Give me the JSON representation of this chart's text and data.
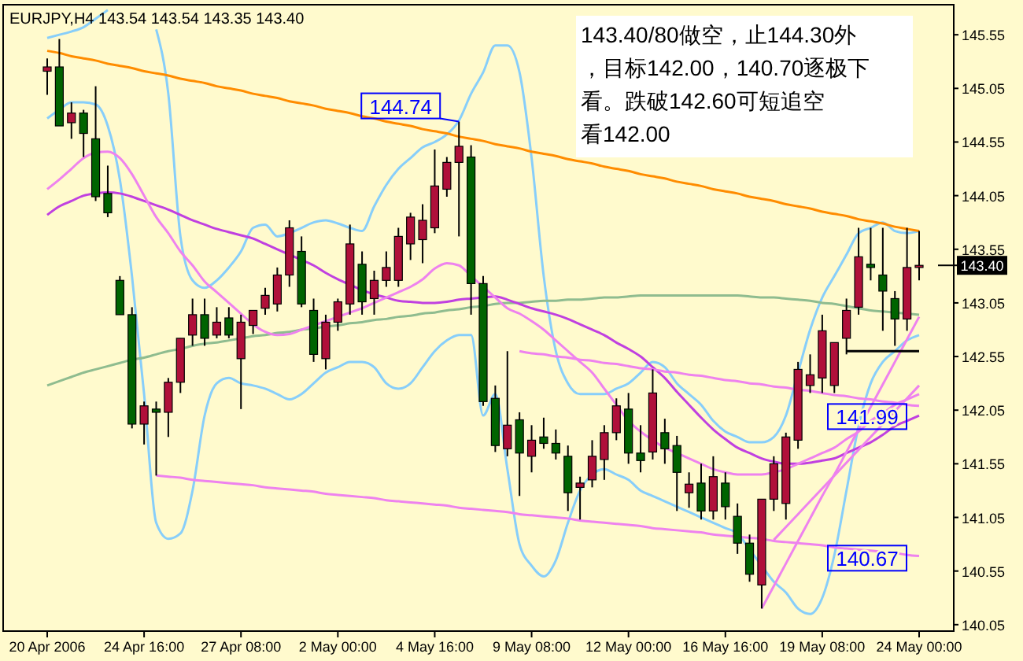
{
  "chart_data": {
    "type": "candlestick",
    "title": "EURJPY,H4  143.54 143.54 143.35 143.40",
    "categories": [
      "20 Apr 2006",
      null,
      null,
      null,
      null,
      null,
      null,
      null,
      "24 Apr 16:00",
      null,
      null,
      null,
      null,
      null,
      null,
      null,
      "27 Apr 08:00",
      null,
      null,
      null,
      null,
      null,
      null,
      null,
      "2 May 00:00",
      null,
      null,
      null,
      null,
      null,
      null,
      null,
      "4 May 16:00",
      null,
      null,
      null,
      null,
      null,
      null,
      null,
      "9 May 08:00",
      null,
      null,
      null,
      null,
      null,
      null,
      null,
      "12 May 00:00",
      null,
      null,
      null,
      null,
      null,
      null,
      null,
      "16 May 16:00",
      null,
      null,
      null,
      null,
      null,
      null,
      null,
      "19 May 08:00",
      null,
      null,
      null,
      null,
      null,
      null,
      null,
      "24 May 00:00"
    ],
    "ohlc": [
      [
        145.21,
        145.33,
        144.99,
        145.25
      ],
      [
        145.25,
        145.51,
        144.7,
        144.7
      ],
      [
        144.73,
        144.92,
        144.58,
        144.82
      ],
      [
        144.82,
        144.85,
        144.41,
        144.63
      ],
      [
        144.58,
        145.07,
        144.0,
        144.04
      ],
      [
        144.07,
        144.33,
        143.85,
        143.89
      ],
      [
        143.26,
        143.3,
        142.94,
        142.94
      ],
      [
        142.94,
        143.01,
        141.88,
        141.92
      ],
      [
        141.92,
        142.13,
        141.73,
        142.09
      ],
      [
        142.06,
        142.13,
        141.44,
        142.03
      ],
      [
        142.03,
        142.35,
        141.8,
        142.31
      ],
      [
        142.31,
        142.72,
        142.21,
        142.72
      ],
      [
        142.75,
        143.09,
        142.65,
        142.94
      ],
      [
        142.94,
        143.09,
        142.65,
        142.72
      ],
      [
        142.75,
        143.01,
        142.72,
        142.87
      ],
      [
        142.91,
        143.01,
        142.72,
        142.75
      ],
      [
        142.53,
        142.94,
        142.06,
        142.87
      ],
      [
        142.84,
        142.98,
        142.76,
        142.98
      ],
      [
        143.0,
        143.19,
        142.94,
        143.12
      ],
      [
        143.04,
        143.38,
        142.97,
        143.31
      ],
      [
        143.31,
        143.82,
        143.2,
        143.75
      ],
      [
        143.53,
        143.67,
        143.01,
        143.04
      ],
      [
        142.98,
        143.09,
        142.5,
        142.57
      ],
      [
        142.53,
        142.94,
        142.43,
        142.87
      ],
      [
        142.87,
        143.09,
        142.79,
        143.06
      ],
      [
        143.04,
        143.78,
        142.94,
        143.6
      ],
      [
        143.41,
        143.53,
        142.94,
        143.06
      ],
      [
        143.09,
        143.35,
        142.94,
        143.26
      ],
      [
        143.26,
        143.53,
        143.2,
        143.38
      ],
      [
        143.26,
        143.75,
        143.2,
        143.67
      ],
      [
        143.6,
        143.89,
        143.45,
        143.85
      ],
      [
        143.64,
        143.97,
        143.42,
        143.82
      ],
      [
        143.75,
        144.48,
        143.7,
        144.14
      ],
      [
        144.11,
        144.41,
        144.04,
        144.36
      ],
      [
        144.36,
        144.74,
        143.67,
        144.51
      ],
      [
        144.41,
        144.52,
        142.94,
        143.23
      ],
      [
        143.23,
        143.3,
        142.09,
        142.13
      ],
      [
        142.16,
        142.28,
        141.66,
        141.72
      ],
      [
        141.69,
        142.6,
        141.62,
        141.91
      ],
      [
        141.96,
        142.03,
        141.25,
        141.65
      ],
      [
        141.62,
        141.91,
        141.47,
        141.77
      ],
      [
        141.8,
        141.98,
        141.69,
        141.74
      ],
      [
        141.74,
        141.87,
        141.59,
        141.65
      ],
      [
        141.62,
        141.72,
        141.11,
        141.28
      ],
      [
        141.33,
        141.43,
        141.03,
        141.37
      ],
      [
        141.4,
        141.77,
        141.33,
        141.62
      ],
      [
        141.59,
        141.91,
        141.4,
        141.84
      ],
      [
        141.84,
        142.16,
        141.77,
        142.09
      ],
      [
        142.06,
        142.21,
        141.55,
        141.65
      ],
      [
        141.65,
        141.91,
        141.47,
        141.58
      ],
      [
        141.66,
        142.43,
        141.59,
        142.21
      ],
      [
        141.84,
        141.97,
        141.55,
        141.69
      ],
      [
        141.72,
        141.81,
        141.11,
        141.47
      ],
      [
        141.28,
        141.47,
        141.14,
        141.36
      ],
      [
        141.37,
        141.55,
        141.03,
        141.11
      ],
      [
        141.11,
        141.62,
        141.03,
        141.43
      ],
      [
        141.37,
        141.47,
        141.03,
        141.15
      ],
      [
        141.06,
        141.18,
        140.71,
        140.81
      ],
      [
        140.81,
        140.89,
        140.45,
        140.52
      ],
      [
        140.42,
        141.22,
        140.2,
        141.22
      ],
      [
        141.22,
        141.62,
        141.11,
        141.55
      ],
      [
        141.18,
        141.84,
        141.03,
        141.8
      ],
      [
        141.77,
        142.5,
        141.69,
        142.43
      ],
      [
        142.28,
        142.57,
        142.21,
        142.38
      ],
      [
        142.35,
        142.94,
        142.21,
        142.79
      ],
      [
        142.28,
        142.68,
        142.21,
        142.68
      ],
      [
        142.72,
        143.09,
        142.57,
        142.98
      ],
      [
        143.01,
        143.75,
        142.94,
        143.48
      ],
      [
        143.41,
        143.75,
        143.26,
        143.38
      ],
      [
        143.31,
        143.75,
        142.79,
        143.16
      ],
      [
        143.09,
        143.16,
        142.65,
        142.9
      ],
      [
        142.9,
        143.75,
        142.79,
        143.38
      ],
      [
        143.38,
        143.72,
        143.26,
        143.4
      ]
    ],
    "colors": [
      "#b0103a",
      "#006400",
      "#b0103a",
      "#006400",
      "#006400",
      "#006400",
      "#006400",
      "#006400",
      "#b0103a",
      "#006400",
      "#b0103a",
      "#b0103a",
      "#b0103a",
      "#006400",
      "#b0103a",
      "#006400",
      "#b0103a",
      "#b0103a",
      "#b0103a",
      "#b0103a",
      "#b0103a",
      "#006400",
      "#006400",
      "#b0103a",
      "#b0103a",
      "#b0103a",
      "#006400",
      "#b0103a",
      "#b0103a",
      "#b0103a",
      "#b0103a",
      "#b0103a",
      "#b0103a",
      "#b0103a",
      "#b0103a",
      "#006400",
      "#006400",
      "#006400",
      "#b0103a",
      "#006400",
      "#b0103a",
      "#006400",
      "#006400",
      "#006400",
      "#b0103a",
      "#b0103a",
      "#b0103a",
      "#b0103a",
      "#006400",
      "#006400",
      "#b0103a",
      "#006400",
      "#006400",
      "#b0103a",
      "#006400",
      "#b0103a",
      "#006400",
      "#006400",
      "#006400",
      "#b0103a",
      "#b0103a",
      "#b0103a",
      "#b0103a",
      "#b0103a",
      "#b0103a",
      "#b0103a",
      "#b0103a",
      "#b0103a",
      "#006400",
      "#006400",
      "#006400",
      "#b0103a",
      "#b0103a"
    ],
    "series": [
      {
        "type": "line",
        "color": "#87cefa",
        "values": [
          145.52,
          145.55,
          145.58,
          145.62,
          145.7,
          145.78,
          null,
          null,
          null,
          145.6,
          145.0,
          143.67,
          143.26,
          143.19,
          143.26,
          143.38,
          143.53,
          143.75,
          143.78,
          143.67,
          143.7,
          143.75,
          143.8,
          143.82,
          143.79,
          143.75,
          143.72,
          143.95,
          144.15,
          144.3,
          144.4,
          144.5,
          144.55,
          144.62,
          144.75,
          145.0,
          145.2,
          145.45,
          145.45,
          145.2,
          144.4,
          143.3,
          142.6,
          142.3,
          142.2,
          142.2,
          142.2,
          142.25,
          142.3,
          142.4,
          142.5,
          142.45,
          142.3,
          142.2,
          142.1,
          141.95,
          141.85,
          141.8,
          141.75,
          141.75,
          141.8,
          142.0,
          142.4,
          142.8,
          143.1,
          143.3,
          143.5,
          143.7,
          143.75,
          143.8,
          143.72,
          143.7,
          143.72
        ]
      },
      {
        "type": "line",
        "color": "#87cefa",
        "values": [
          144.77,
          144.85,
          144.92,
          144.92,
          144.9,
          144.7,
          144.2,
          143.3,
          142.2,
          141.0,
          140.85,
          140.9,
          141.3,
          142.0,
          142.3,
          142.35,
          142.3,
          142.28,
          142.25,
          142.2,
          142.15,
          142.2,
          142.3,
          142.4,
          142.45,
          142.5,
          142.5,
          142.45,
          142.3,
          142.25,
          142.3,
          142.45,
          142.6,
          142.7,
          142.75,
          142.75,
          142.0,
          142.2,
          141.5,
          140.8,
          140.6,
          140.5,
          140.65,
          141.0,
          141.3,
          141.45,
          141.5,
          141.45,
          141.4,
          141.3,
          141.25,
          141.2,
          141.15,
          141.1,
          141.05,
          141.0,
          140.95,
          140.9,
          140.75,
          140.6,
          140.45,
          140.35,
          140.2,
          140.15,
          140.3,
          140.7,
          141.3,
          141.9,
          142.3,
          142.5,
          142.6,
          142.7,
          142.75
        ]
      },
      {
        "type": "line",
        "color": "#8fbc8f",
        "values": [
          142.28,
          142.32,
          142.36,
          142.4,
          142.43,
          142.46,
          142.49,
          142.52,
          142.54,
          142.57,
          142.6,
          142.62,
          142.65,
          142.67,
          142.68,
          142.7,
          142.72,
          142.74,
          142.75,
          142.77,
          142.78,
          142.8,
          142.81,
          142.83,
          142.84,
          142.86,
          142.87,
          142.89,
          142.9,
          142.92,
          142.93,
          142.95,
          142.96,
          142.98,
          142.99,
          143.01,
          143.02,
          143.04,
          143.05,
          143.05,
          143.06,
          143.07,
          143.07,
          143.08,
          143.08,
          143.09,
          143.1,
          143.1,
          143.11,
          143.12,
          143.12,
          143.12,
          143.12,
          143.12,
          143.12,
          143.12,
          143.12,
          143.12,
          143.11,
          143.1,
          143.1,
          143.09,
          143.08,
          143.07,
          143.05,
          143.04,
          143.02,
          143.0,
          142.98,
          142.97,
          142.96,
          142.95,
          142.94
        ]
      },
      {
        "type": "line",
        "color": "#c040e0",
        "values": [
          143.87,
          143.95,
          144.0,
          144.05,
          144.07,
          144.08,
          144.07,
          144.04,
          144.0,
          143.96,
          143.92,
          143.87,
          143.82,
          143.78,
          143.74,
          143.71,
          143.68,
          143.65,
          143.6,
          143.55,
          143.5,
          143.45,
          143.4,
          143.33,
          143.27,
          143.22,
          143.17,
          143.13,
          143.1,
          143.07,
          143.06,
          143.05,
          143.05,
          143.06,
          143.08,
          143.09,
          143.1,
          143.11,
          143.08,
          143.04,
          143.0,
          142.97,
          142.94,
          142.9,
          142.85,
          142.8,
          142.75,
          142.68,
          142.62,
          142.55,
          142.45,
          142.35,
          142.22,
          142.1,
          141.98,
          141.87,
          141.78,
          141.7,
          141.65,
          141.6,
          141.57,
          141.55,
          141.55,
          141.56,
          141.58,
          141.6,
          141.65,
          141.7,
          141.75,
          141.82,
          141.9,
          141.95,
          142.0
        ]
      },
      {
        "type": "line",
        "color": "#ee82ee",
        "values": [
          144.11,
          144.2,
          144.3,
          144.4,
          144.45,
          144.46,
          144.4,
          144.25,
          144.05,
          143.85,
          143.7,
          143.53,
          143.4,
          143.25,
          143.15,
          143.05,
          142.95,
          142.85,
          142.78,
          142.75,
          142.76,
          142.8,
          142.84,
          142.88,
          142.92,
          142.96,
          143.0,
          143.05,
          143.1,
          143.15,
          143.2,
          143.27,
          143.37,
          143.42,
          143.4,
          143.3,
          143.2,
          143.1,
          143.0,
          142.95,
          142.88,
          142.8,
          142.7,
          142.6,
          142.5,
          142.4,
          142.25,
          142.1,
          141.95,
          141.85,
          141.77,
          141.7,
          141.65,
          141.6,
          141.55,
          141.5,
          141.47,
          141.45,
          141.45,
          141.45,
          141.47,
          141.5,
          141.55,
          141.6,
          141.65,
          141.7,
          141.78,
          141.85,
          141.95,
          142.02,
          142.1,
          142.15,
          142.2
        ]
      },
      {
        "type": "line",
        "color": "#ff8c00",
        "values": [
          145.4,
          145.38,
          145.35,
          145.33,
          145.31,
          145.28,
          145.26,
          145.24,
          145.21,
          145.19,
          145.17,
          145.14,
          145.12,
          145.1,
          145.07,
          145.05,
          145.03,
          145.0,
          144.98,
          144.96,
          144.93,
          144.91,
          144.89,
          144.86,
          144.84,
          144.82,
          144.79,
          144.77,
          144.74,
          144.72,
          144.7,
          144.67,
          144.65,
          144.63,
          144.6,
          144.58,
          144.56,
          144.53,
          144.51,
          144.49,
          144.46,
          144.44,
          144.42,
          144.39,
          144.37,
          144.35,
          144.32,
          144.3,
          144.28,
          144.25,
          144.23,
          144.21,
          144.18,
          144.16,
          144.14,
          144.11,
          144.09,
          144.07,
          144.04,
          144.02,
          144.0,
          143.97,
          143.95,
          143.93,
          143.9,
          143.88,
          143.86,
          143.83,
          143.81,
          143.79,
          143.76,
          143.74,
          143.72
        ]
      },
      {
        "type": "line",
        "color": "#ee82ee",
        "values": [
          null,
          null,
          null,
          null,
          null,
          null,
          null,
          null,
          null,
          null,
          null,
          null,
          null,
          null,
          null,
          null,
          null,
          null,
          null,
          null,
          null,
          null,
          null,
          null,
          null,
          null,
          null,
          null,
          null,
          null,
          null,
          null,
          null,
          null,
          null,
          null,
          null,
          null,
          null,
          142.6,
          142.58,
          142.57,
          142.55,
          142.54,
          142.52,
          142.51,
          142.49,
          142.48,
          142.46,
          142.44,
          142.43,
          142.41,
          142.4,
          142.38,
          142.37,
          142.35,
          142.33,
          142.32,
          142.3,
          142.29,
          142.27,
          142.26,
          142.24,
          142.23,
          142.21,
          142.19,
          142.18,
          142.16,
          142.15,
          142.13,
          142.12,
          142.1,
          142.09
        ]
      },
      {
        "type": "line",
        "color": "#ee82ee",
        "values": [
          null,
          null,
          null,
          null,
          null,
          null,
          null,
          null,
          null,
          141.44,
          141.43,
          141.42,
          141.4,
          141.39,
          141.38,
          141.37,
          141.36,
          141.35,
          141.33,
          141.32,
          141.31,
          141.3,
          141.29,
          141.27,
          141.26,
          141.25,
          141.24,
          141.23,
          141.21,
          141.2,
          141.19,
          141.18,
          141.17,
          141.16,
          141.14,
          141.13,
          141.12,
          141.11,
          141.1,
          141.08,
          141.07,
          141.06,
          141.05,
          141.04,
          141.02,
          141.01,
          141.0,
          140.99,
          140.98,
          140.97,
          140.95,
          140.94,
          140.93,
          140.92,
          140.91,
          140.89,
          140.88,
          140.87,
          140.86,
          140.85,
          140.83,
          140.82,
          140.81,
          140.8,
          140.79,
          140.77,
          140.76,
          140.75,
          140.74,
          140.73,
          140.72,
          140.7,
          140.69
        ]
      },
      {
        "type": "line",
        "color": "#ee82ee",
        "values": [
          null,
          null,
          null,
          null,
          null,
          null,
          null,
          null,
          null,
          null,
          null,
          null,
          null,
          null,
          null,
          null,
          null,
          null,
          null,
          null,
          null,
          null,
          null,
          null,
          null,
          null,
          null,
          null,
          null,
          null,
          null,
          null,
          null,
          null,
          null,
          null,
          null,
          null,
          null,
          null,
          null,
          null,
          null,
          null,
          null,
          null,
          null,
          null,
          null,
          null,
          null,
          null,
          null,
          null,
          null,
          null,
          null,
          null,
          null,
          140.2,
          140.41,
          140.62,
          140.83,
          141.04,
          141.25,
          141.45,
          141.66,
          141.87,
          142.08,
          142.29,
          142.5,
          142.71,
          142.92
        ]
      },
      {
        "type": "line",
        "color": "#ee82ee",
        "values": [
          null,
          null,
          null,
          null,
          null,
          null,
          null,
          null,
          null,
          null,
          null,
          null,
          null,
          null,
          null,
          null,
          null,
          null,
          null,
          null,
          null,
          null,
          null,
          null,
          null,
          null,
          null,
          null,
          null,
          null,
          null,
          null,
          null,
          null,
          null,
          null,
          null,
          null,
          null,
          null,
          null,
          null,
          null,
          null,
          null,
          null,
          null,
          null,
          null,
          null,
          null,
          null,
          null,
          null,
          null,
          null,
          null,
          null,
          null,
          null,
          140.84,
          140.96,
          141.08,
          141.2,
          141.32,
          141.44,
          141.56,
          141.68,
          141.8,
          141.92,
          142.04,
          142.16,
          142.28
        ]
      },
      {
        "type": "line",
        "color": "#000000",
        "values": [
          null,
          null,
          null,
          null,
          null,
          null,
          null,
          null,
          null,
          null,
          null,
          null,
          null,
          null,
          null,
          null,
          null,
          null,
          null,
          null,
          null,
          null,
          null,
          null,
          null,
          null,
          null,
          null,
          null,
          null,
          null,
          null,
          null,
          null,
          null,
          null,
          null,
          null,
          null,
          null,
          null,
          null,
          null,
          null,
          null,
          null,
          null,
          null,
          null,
          null,
          null,
          null,
          null,
          null,
          null,
          null,
          null,
          null,
          null,
          null,
          null,
          null,
          null,
          null,
          null,
          null,
          142.6,
          142.6,
          142.6,
          142.6,
          142.6,
          142.6,
          142.6
        ]
      }
    ],
    "ylim": [
      139.99,
      145.83
    ],
    "yticks": [
      140.05,
      140.55,
      141.05,
      141.55,
      142.05,
      142.55,
      143.05,
      143.55,
      144.05,
      144.55,
      145.05,
      145.55
    ],
    "ref_lines": [
      {
        "axis": "y",
        "value": 143.4,
        "label": "143.40",
        "color": "#000000"
      }
    ],
    "annotations": [
      "143.40/80做空，止144.30外",
      "，目标142.00，140.70逐极下",
      "看。跌破142.60可短追空",
      "看142.00",
      {
        "text": "144.74",
        "y": 144.74
      },
      {
        "text": "141.99",
        "y": 141.99
      },
      {
        "text": "140.67",
        "y": 140.67
      }
    ]
  }
}
